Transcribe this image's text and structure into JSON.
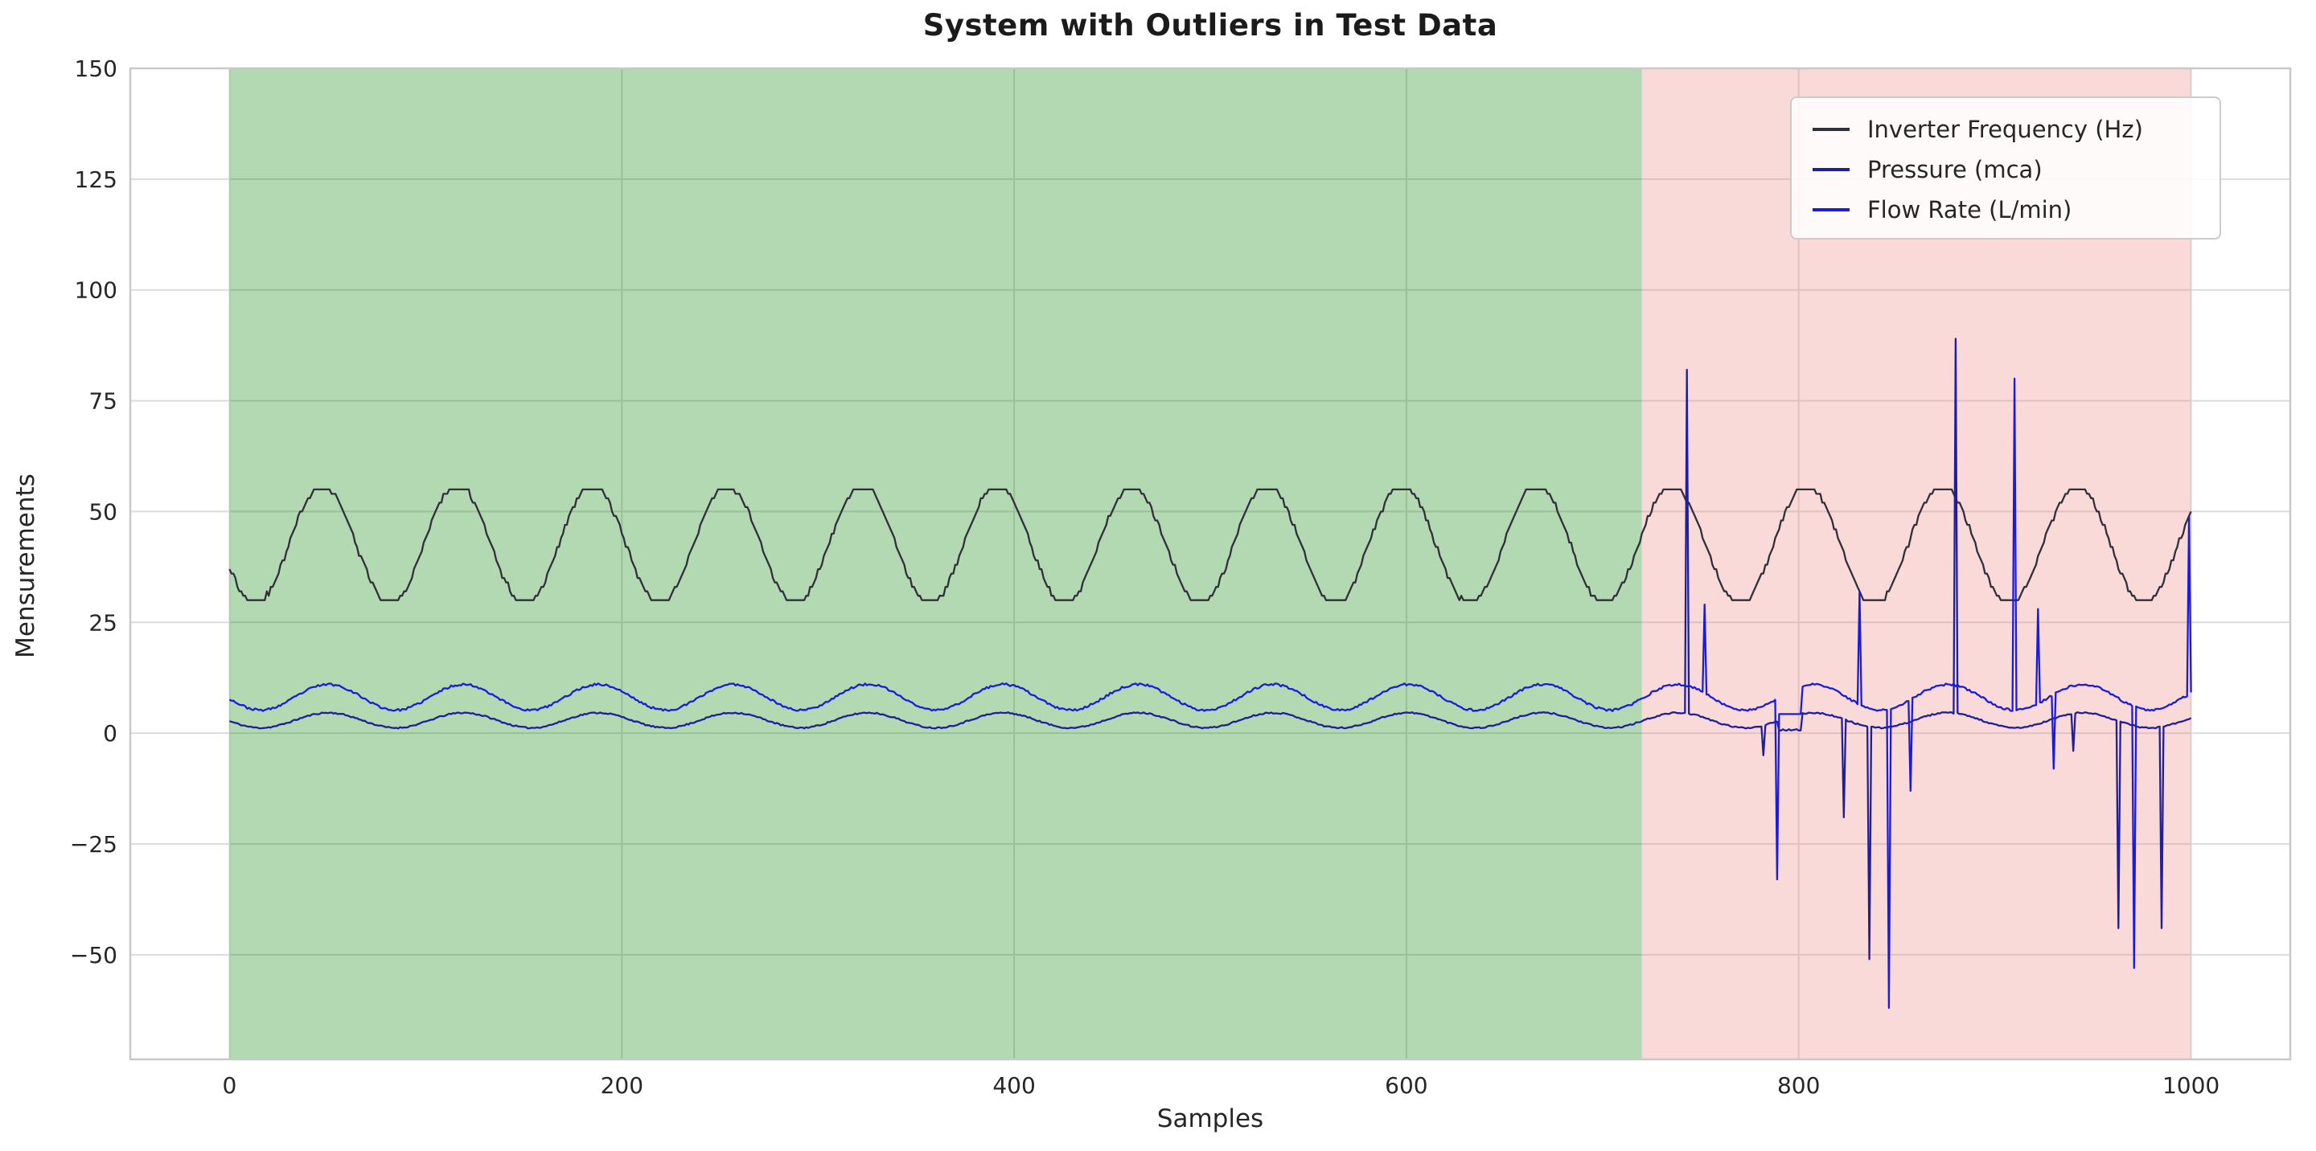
{
  "chart_data": {
    "type": "line",
    "title": "System with Outliers in Test Data",
    "xlabel": "Samples",
    "ylabel": "Mensurements",
    "xlim": [
      -50.6,
      1050.6
    ],
    "ylim": [
      -73.6,
      150
    ],
    "grid": true,
    "legend_position": "upper right",
    "n_samples": 1001,
    "x_ticks": [
      {
        "value": 0,
        "label": "0"
      },
      {
        "value": 200,
        "label": "200"
      },
      {
        "value": 400,
        "label": "400"
      },
      {
        "value": 600,
        "label": "600"
      },
      {
        "value": 800,
        "label": "800"
      },
      {
        "value": 1000,
        "label": "1000"
      }
    ],
    "y_ticks": [
      {
        "value": 150,
        "label": "150"
      },
      {
        "value": 125,
        "label": "125"
      },
      {
        "value": 100,
        "label": "100"
      },
      {
        "value": 75,
        "label": "75"
      },
      {
        "value": 50,
        "label": "50"
      },
      {
        "value": 25,
        "label": "25"
      },
      {
        "value": 0,
        "label": "0"
      },
      {
        "value": -25,
        "label": "−25"
      },
      {
        "value": -50,
        "label": "−50"
      }
    ],
    "regions": [
      {
        "name": "train-normal-region",
        "from": 0,
        "to": 720,
        "color": "#008000",
        "opacity": 0.3
      },
      {
        "name": "test-outlier-region",
        "from": 720,
        "to": 1000,
        "color": "#f08080",
        "opacity": 0.3
      }
    ],
    "series": [
      {
        "name": "Inverter Frequency (Hz)",
        "color": "#30303a",
        "mean": 42.5,
        "amplitude": 13.4,
        "period": 68.8,
        "trough_at": 13,
        "noise": 0.5,
        "clip": [
          30,
          55
        ],
        "quantize": 1,
        "seed": 7,
        "outliers": [],
        "dips": []
      },
      {
        "name": "Pressure (mca)",
        "color": "#1f1f9c",
        "mean": 2.9,
        "amplitude": 1.7,
        "period": 68.8,
        "trough_at": 16,
        "noise": 0.16,
        "clip": [
          0.6,
          5.2
        ],
        "quantize": 0,
        "seed": 11,
        "outliers": [
          [
            743,
            82
          ],
          [
            782,
            -5
          ],
          [
            823,
            -19
          ],
          [
            836,
            -51
          ],
          [
            880,
            89
          ],
          [
            940,
            -4
          ],
          [
            963,
            -44
          ],
          [
            985,
            -44
          ]
        ],
        "dips": [
          {
            "from": 790,
            "to": 801,
            "level": 0.6
          }
        ]
      },
      {
        "name": "Flow Rate (L/min)",
        "color": "#1b1be0",
        "mean": 8.1,
        "amplitude": 2.9,
        "period": 68.8,
        "trough_at": 16,
        "noise": 0.25,
        "clip": [
          4.3,
          11.3
        ],
        "quantize": 0,
        "seed": 23,
        "outliers": [
          [
            752,
            29
          ],
          [
            789,
            -33
          ],
          [
            831,
            32
          ],
          [
            846,
            -62
          ],
          [
            857,
            -13
          ],
          [
            910,
            80
          ],
          [
            922,
            28
          ],
          [
            930,
            -8
          ],
          [
            971,
            -53
          ],
          [
            999,
            49
          ]
        ],
        "dips": [
          {
            "from": 790,
            "to": 801,
            "level": 2.5
          }
        ]
      }
    ]
  },
  "style": {
    "background": "#ffffff",
    "grid_color": "#dcdcdc",
    "spine_color": "#c9c9c9",
    "tick_text_color": "#262626",
    "title_color": "#1b1b1b",
    "legend_bg": "rgba(255,255,255,0.85)",
    "legend_border": "#cccccc"
  }
}
